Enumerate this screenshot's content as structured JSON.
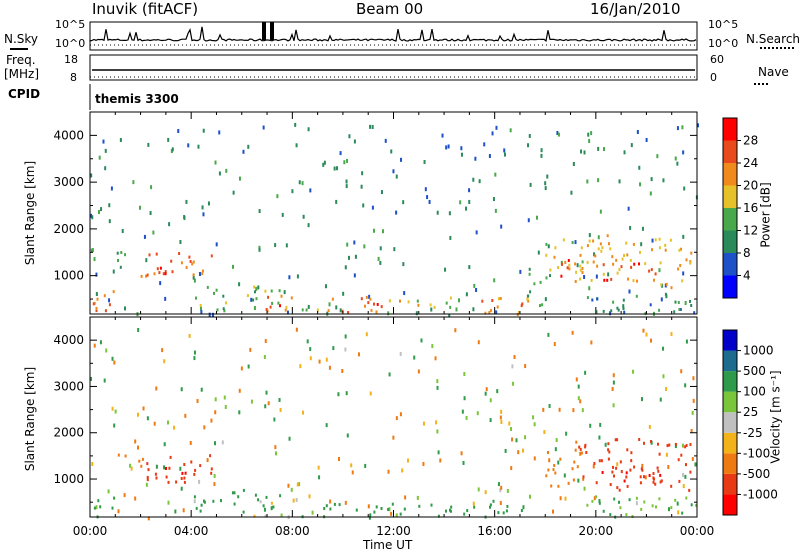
{
  "header": {
    "title": "Inuvik (fitACF)",
    "beam": "Beam 00",
    "date": "16/Jan/2010"
  },
  "nsky_panel": {
    "label": "N.Sky",
    "right_label": "N.Search",
    "left_ticks": [
      "10^5",
      "10^0"
    ],
    "right_ticks": [
      "10^5",
      "10^0"
    ]
  },
  "freq_panel": {
    "label_line1": "Freq.",
    "label_line2": "[MHz]",
    "left_ticks": [
      "18",
      "8"
    ],
    "right_ticks": [
      "60",
      "0"
    ],
    "right_label": "Nave"
  },
  "cpid_panel": {
    "label": "CPID",
    "value": "themis 3300"
  },
  "power_panel": {
    "ylabel": "Slant Range [km]",
    "yticks": [
      "4000",
      "3000",
      "2000",
      "1000"
    ],
    "colorbar_label": "Power [dB]",
    "colorbar_ticks": [
      "28",
      "24",
      "20",
      "16",
      "12",
      "8",
      "4"
    ],
    "colors": [
      "#0000ff",
      "#1e50c8",
      "#2a8a5a",
      "#49a84a",
      "#e7c12a",
      "#f08a1c",
      "#e84a1e",
      "#ff0000"
    ]
  },
  "velocity_panel": {
    "ylabel": "Slant Range [km]",
    "yticks": [
      "4000",
      "3000",
      "2000",
      "1000"
    ],
    "colorbar_label": "Velocity [m s⁻¹]",
    "colorbar_ticks": [
      "1000",
      "500",
      "100",
      "25",
      "-25",
      "-100",
      "-500",
      "-1000"
    ],
    "colors": [
      "#0000c8",
      "#1d6b8f",
      "#2e9a4a",
      "#7ac63a",
      "#c0c0c0",
      "#f2b21a",
      "#f07a12",
      "#e83a14",
      "#ff0000"
    ]
  },
  "x_axis": {
    "ticks": [
      "00:00",
      "04:00",
      "08:00",
      "12:00",
      "16:00",
      "20:00",
      "00:00"
    ],
    "label": "Time UT"
  },
  "chart_data": [
    {
      "type": "heatmap",
      "title": "",
      "xlabel": "Time UT",
      "ylabel": "Slant Range [km]",
      "xlim": [
        0,
        24
      ],
      "ylim": [
        180,
        4500
      ],
      "zlabel": "Power [dB]",
      "zlim": [
        0,
        32
      ],
      "blobs": [
        {
          "t0": 1.0,
          "t1": 2.1,
          "r0": 1200,
          "r1": 1600,
          "value": 14
        },
        {
          "t0": 1.9,
          "t1": 4.9,
          "r0": 950,
          "r1": 1550,
          "value": 24
        },
        {
          "t0": 2.6,
          "t1": 3.8,
          "r0": 1000,
          "r1": 1400,
          "value": 28
        },
        {
          "t0": 0.0,
          "t1": 1.0,
          "r0": 200,
          "r1": 700,
          "value": 22
        },
        {
          "t0": 0.1,
          "t1": 0.9,
          "r0": 200,
          "r1": 500,
          "value": 28
        },
        {
          "t0": 4.0,
          "t1": 7.5,
          "r0": 280,
          "r1": 800,
          "value": 14
        },
        {
          "t0": 6.4,
          "t1": 8.0,
          "r0": 200,
          "r1": 600,
          "value": 22
        },
        {
          "t0": 6.8,
          "t1": 7.6,
          "r0": 220,
          "r1": 500,
          "value": 28
        },
        {
          "t0": 8.0,
          "t1": 9.5,
          "r0": 200,
          "r1": 350,
          "value": 16
        },
        {
          "t0": 9.2,
          "t1": 11.6,
          "r0": 200,
          "r1": 600,
          "value": 22
        },
        {
          "t0": 10.6,
          "t1": 11.6,
          "r0": 200,
          "r1": 450,
          "value": 28
        },
        {
          "t0": 11.6,
          "t1": 14.4,
          "r0": 200,
          "r1": 500,
          "value": 18
        },
        {
          "t0": 14.2,
          "t1": 17.3,
          "r0": 200,
          "r1": 600,
          "value": 22
        },
        {
          "t0": 16.4,
          "t1": 17.2,
          "r0": 200,
          "r1": 450,
          "value": 28
        },
        {
          "t0": 17.2,
          "t1": 18.2,
          "r0": 300,
          "r1": 1200,
          "value": 12
        },
        {
          "t0": 18.0,
          "t1": 19.5,
          "r0": 800,
          "r1": 1900,
          "value": 18
        },
        {
          "t0": 18.3,
          "t1": 19.0,
          "r0": 1000,
          "r1": 1500,
          "value": 28
        },
        {
          "t0": 19.3,
          "t1": 23.8,
          "r0": 750,
          "r1": 1900,
          "value": 20
        },
        {
          "t0": 20.2,
          "t1": 22.6,
          "r0": 900,
          "r1": 1300,
          "value": 28
        },
        {
          "t0": 19.0,
          "t1": 24.0,
          "r0": 200,
          "r1": 650,
          "value": 10
        }
      ]
    },
    {
      "type": "heatmap",
      "title": "",
      "xlabel": "Time UT",
      "ylabel": "Slant Range [km]",
      "xlim": [
        0,
        24
      ],
      "ylim": [
        180,
        4500
      ],
      "zlabel": "Velocity [m s-1]",
      "zlim": [
        -1000,
        1000
      ],
      "blobs": [
        {
          "t0": 1.0,
          "t1": 2.1,
          "r0": 1200,
          "r1": 1600,
          "value": -100
        },
        {
          "t0": 1.9,
          "t1": 4.9,
          "r0": 950,
          "r1": 1550,
          "value": -400
        },
        {
          "t0": 2.6,
          "t1": 3.8,
          "r0": 1000,
          "r1": 1400,
          "value": -800
        },
        {
          "t0": 0.0,
          "t1": 1.0,
          "r0": 200,
          "r1": 700,
          "value": 150
        },
        {
          "t0": 4.0,
          "t1": 7.5,
          "r0": 280,
          "r1": 800,
          "value": 150
        },
        {
          "t0": 6.4,
          "t1": 8.0,
          "r0": 200,
          "r1": 600,
          "value": 0
        },
        {
          "t0": 8.0,
          "t1": 11.6,
          "r0": 200,
          "r1": 500,
          "value": 200
        },
        {
          "t0": 11.6,
          "t1": 14.4,
          "r0": 200,
          "r1": 500,
          "value": 150
        },
        {
          "t0": 14.2,
          "t1": 17.3,
          "r0": 200,
          "r1": 600,
          "value": 200
        },
        {
          "t0": 18.0,
          "t1": 19.5,
          "r0": 800,
          "r1": 1900,
          "value": -200
        },
        {
          "t0": 19.3,
          "t1": 23.8,
          "r0": 750,
          "r1": 1900,
          "value": -400
        },
        {
          "t0": 20.2,
          "t1": 22.6,
          "r0": 900,
          "r1": 1300,
          "value": -800
        },
        {
          "t0": 19.0,
          "t1": 24.0,
          "r0": 200,
          "r1": 650,
          "value": 50
        }
      ]
    }
  ]
}
